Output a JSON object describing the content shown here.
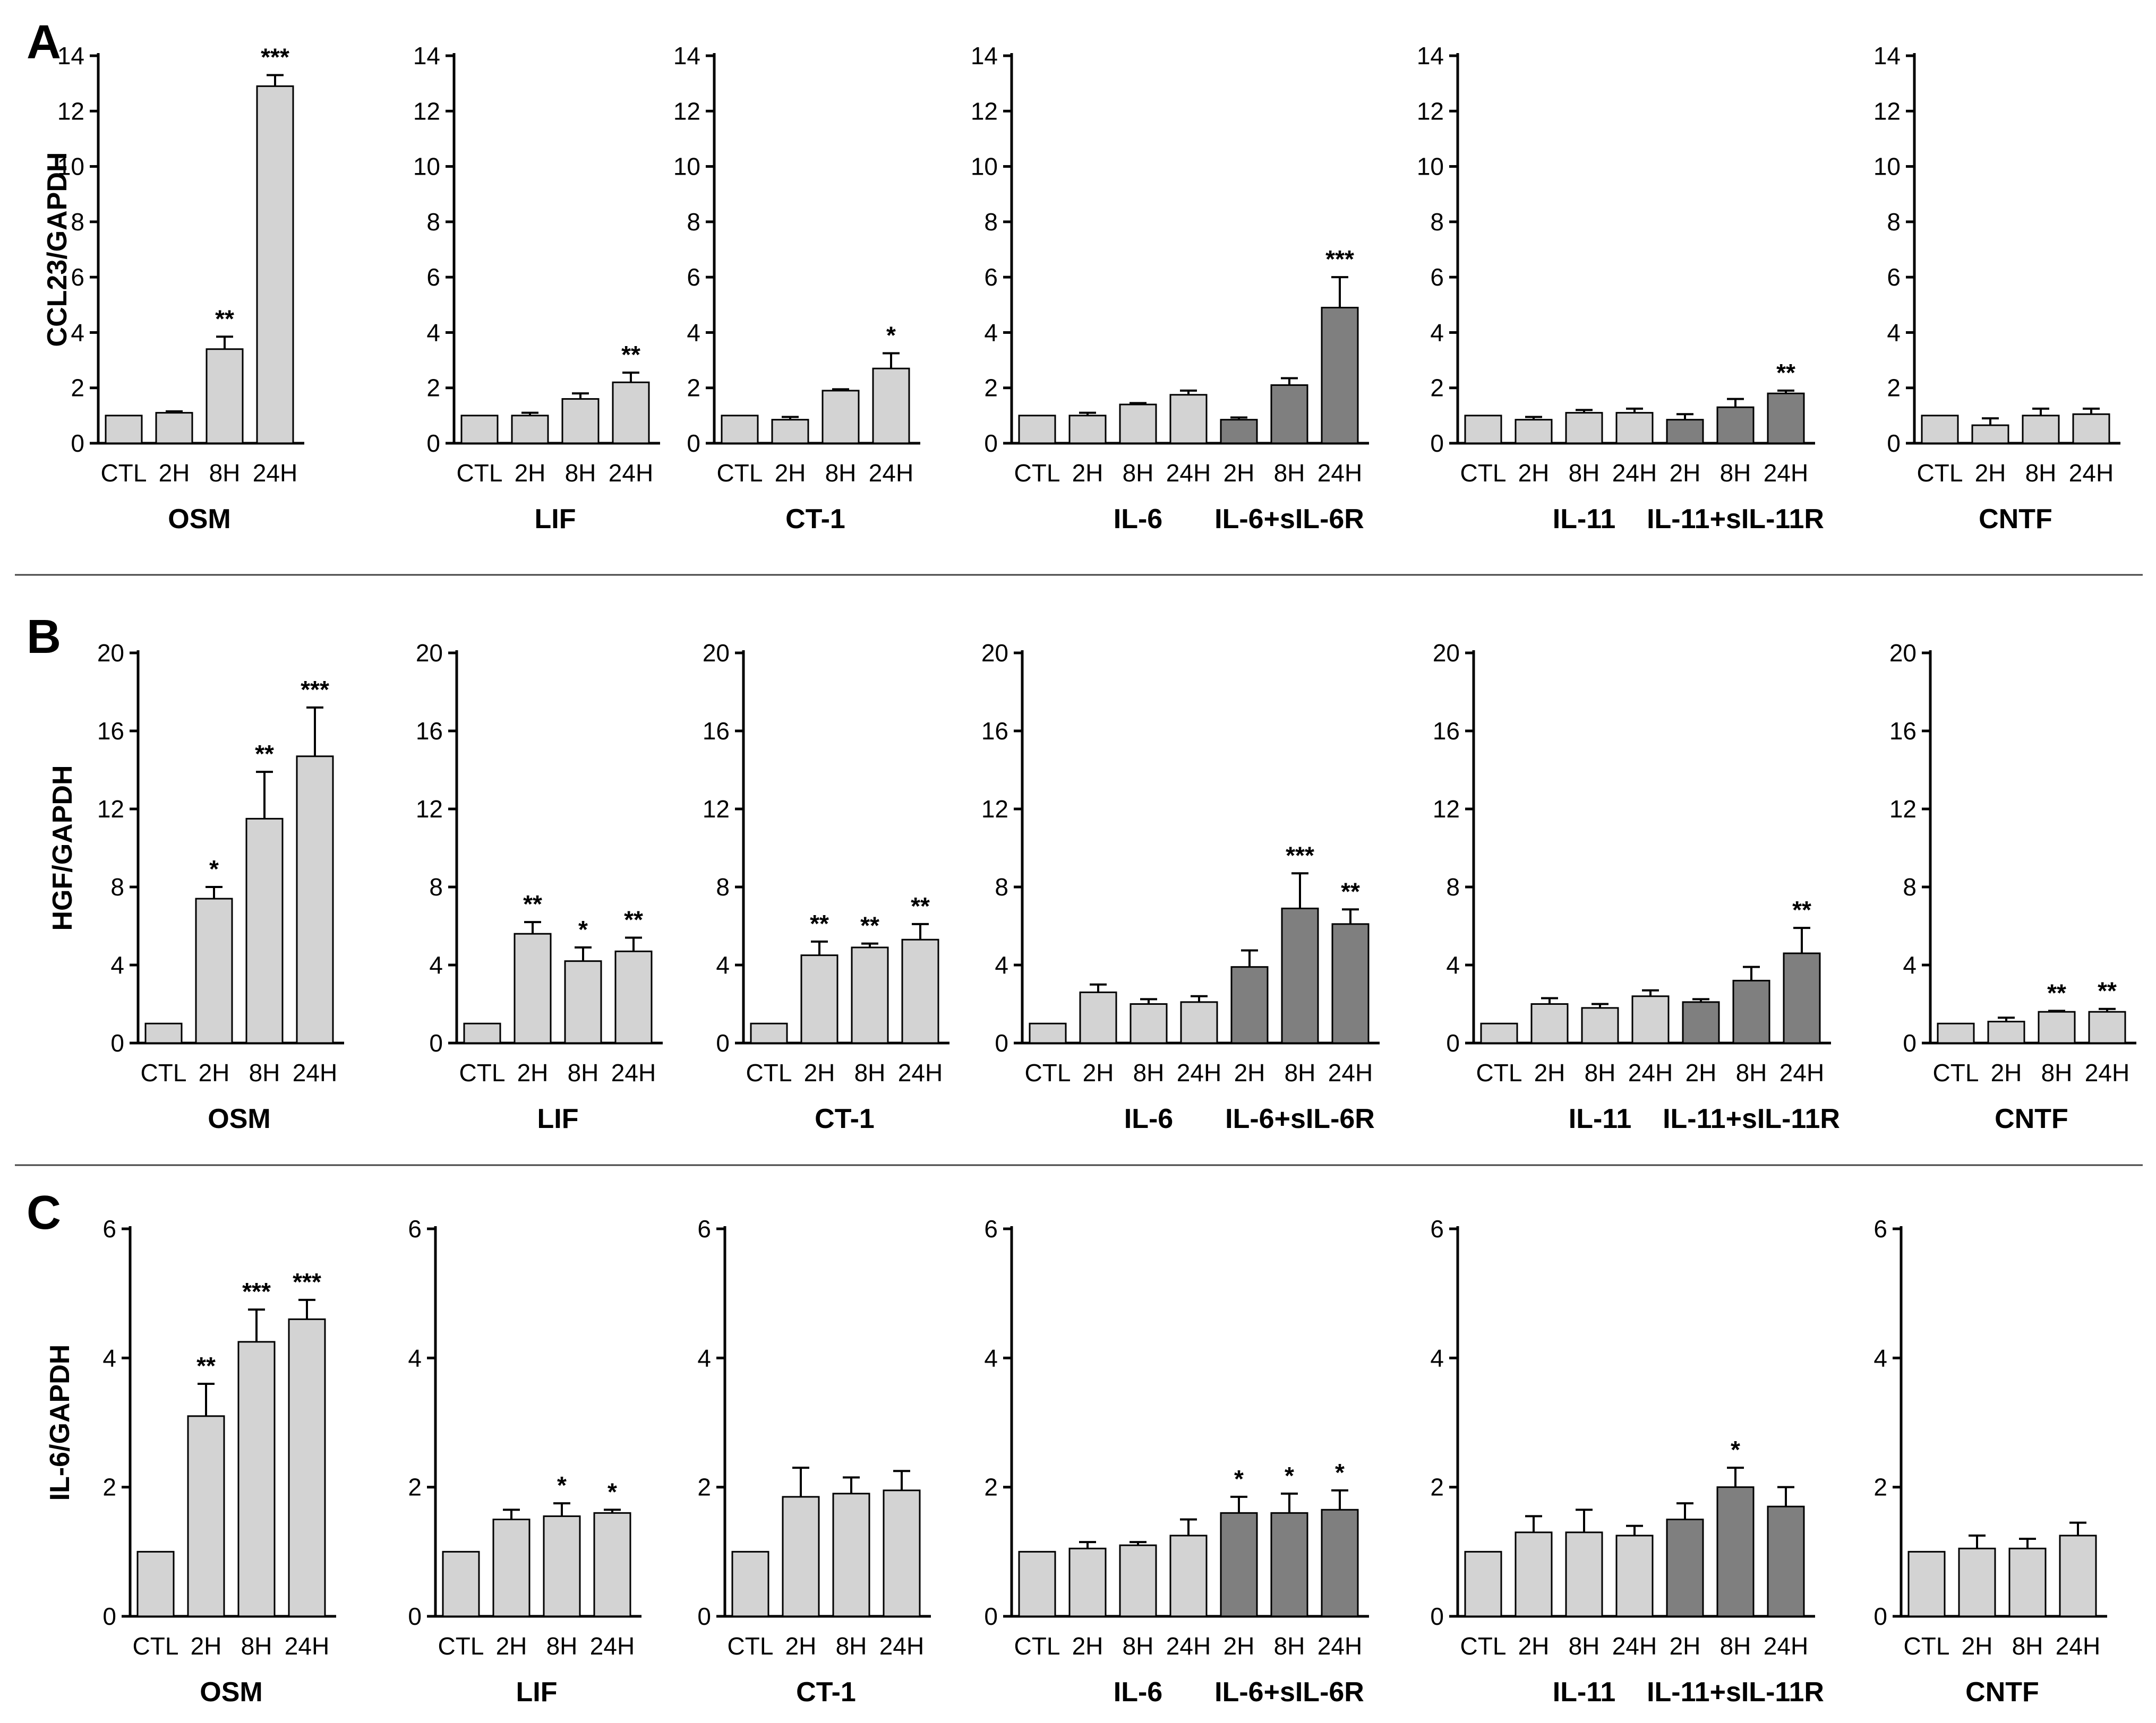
{
  "colors": {
    "light_bar": "#d3d3d3",
    "dark_bar": "#7f7f7f",
    "stroke": "#000000",
    "divider": "#444444"
  },
  "rows": [
    {
      "panel": "A",
      "ylabel": "CCL23/GAPDH",
      "ylim": [
        0,
        14
      ],
      "ticks": [
        0,
        2,
        4,
        6,
        8,
        10,
        12,
        14
      ],
      "charts": [
        {
          "type": "bar",
          "categories": [
            "CTL",
            "2H",
            "8H",
            "24H"
          ],
          "groups": [
            {
              "label": "OSM",
              "span": [
                0,
                3
              ]
            }
          ],
          "values": [
            1.0,
            1.1,
            3.4,
            12.9
          ],
          "errors": [
            0,
            0.05,
            0.45,
            0.4
          ],
          "shade": [
            "light",
            "light",
            "light",
            "light"
          ],
          "sig": [
            "",
            "",
            "**",
            "***"
          ]
        },
        {
          "type": "bar",
          "categories": [
            "CTL",
            "2H",
            "8H",
            "24H"
          ],
          "groups": [
            {
              "label": "LIF",
              "span": [
                0,
                3
              ]
            }
          ],
          "values": [
            1.0,
            1.0,
            1.6,
            2.2
          ],
          "errors": [
            0,
            0.1,
            0.2,
            0.35
          ],
          "shade": [
            "light",
            "light",
            "light",
            "light"
          ],
          "sig": [
            "",
            "",
            "",
            "**"
          ]
        },
        {
          "type": "bar",
          "categories": [
            "CTL",
            "2H",
            "8H",
            "24H"
          ],
          "groups": [
            {
              "label": "CT-1",
              "span": [
                0,
                3
              ]
            }
          ],
          "values": [
            1.0,
            0.85,
            1.9,
            2.7
          ],
          "errors": [
            0,
            0.1,
            0.05,
            0.55
          ],
          "shade": [
            "light",
            "light",
            "light",
            "light"
          ],
          "sig": [
            "",
            "",
            "",
            "*"
          ]
        },
        {
          "type": "bar",
          "categories": [
            "CTL",
            "2H",
            "8H",
            "24H",
            "2H",
            "8H",
            "24H"
          ],
          "groups": [
            {
              "label": "IL-6",
              "span": [
                1,
                3
              ]
            },
            {
              "label": "IL-6+sIL-6R",
              "span": [
                4,
                6
              ]
            }
          ],
          "values": [
            1.0,
            1.0,
            1.4,
            1.75,
            0.85,
            2.1,
            4.9
          ],
          "errors": [
            0,
            0.1,
            0.05,
            0.15,
            0.08,
            0.25,
            1.1
          ],
          "shade": [
            "light",
            "light",
            "light",
            "light",
            "dark",
            "dark",
            "dark"
          ],
          "sig": [
            "",
            "",
            "",
            "",
            "",
            "",
            "***"
          ]
        },
        {
          "type": "bar",
          "categories": [
            "CTL",
            "2H",
            "8H",
            "24H",
            "2H",
            "8H",
            "24H"
          ],
          "groups": [
            {
              "label": "IL-11",
              "span": [
                1,
                3
              ]
            },
            {
              "label": "IL-11+sIL-11R",
              "span": [
                4,
                6
              ]
            }
          ],
          "values": [
            1.0,
            0.85,
            1.1,
            1.1,
            0.85,
            1.3,
            1.8
          ],
          "errors": [
            0,
            0.1,
            0.1,
            0.15,
            0.2,
            0.3,
            0.1
          ],
          "shade": [
            "light",
            "light",
            "light",
            "light",
            "dark",
            "dark",
            "dark"
          ],
          "sig": [
            "",
            "",
            "",
            "",
            "",
            "",
            "**"
          ]
        },
        {
          "type": "bar",
          "categories": [
            "CTL",
            "2H",
            "8H",
            "24H"
          ],
          "groups": [
            {
              "label": "CNTF",
              "span": [
                0,
                3
              ]
            }
          ],
          "values": [
            1.0,
            0.65,
            1.0,
            1.05
          ],
          "errors": [
            0,
            0.25,
            0.25,
            0.2
          ],
          "shade": [
            "light",
            "light",
            "light",
            "light"
          ],
          "sig": [
            "",
            "",
            "",
            ""
          ]
        }
      ]
    },
    {
      "panel": "B",
      "ylabel": "HGF/GAPDH",
      "ylim": [
        0,
        20
      ],
      "ticks": [
        0,
        4,
        8,
        12,
        16,
        20
      ],
      "charts": [
        {
          "type": "bar",
          "categories": [
            "CTL",
            "2H",
            "8H",
            "24H"
          ],
          "groups": [
            {
              "label": "OSM",
              "span": [
                0,
                3
              ]
            }
          ],
          "values": [
            1.0,
            7.4,
            11.5,
            14.7
          ],
          "errors": [
            0,
            0.6,
            2.4,
            2.5
          ],
          "shade": [
            "light",
            "light",
            "light",
            "light"
          ],
          "sig": [
            "",
            "*",
            "**",
            "***"
          ]
        },
        {
          "type": "bar",
          "categories": [
            "CTL",
            "2H",
            "8H",
            "24H"
          ],
          "groups": [
            {
              "label": "LIF",
              "span": [
                0,
                3
              ]
            }
          ],
          "values": [
            1.0,
            5.6,
            4.2,
            4.7
          ],
          "errors": [
            0,
            0.6,
            0.7,
            0.7
          ],
          "shade": [
            "light",
            "light",
            "light",
            "light"
          ],
          "sig": [
            "",
            "**",
            "*",
            "**"
          ]
        },
        {
          "type": "bar",
          "categories": [
            "CTL",
            "2H",
            "8H",
            "24H"
          ],
          "groups": [
            {
              "label": "CT-1",
              "span": [
                0,
                3
              ]
            }
          ],
          "values": [
            1.0,
            4.5,
            4.9,
            5.3
          ],
          "errors": [
            0,
            0.7,
            0.2,
            0.8
          ],
          "shade": [
            "light",
            "light",
            "light",
            "light"
          ],
          "sig": [
            "",
            "**",
            "**",
            "**"
          ]
        },
        {
          "type": "bar",
          "categories": [
            "CTL",
            "2H",
            "8H",
            "24H",
            "2H",
            "8H",
            "24H"
          ],
          "groups": [
            {
              "label": "IL-6",
              "span": [
                1,
                3
              ]
            },
            {
              "label": "IL-6+sIL-6R",
              "span": [
                4,
                6
              ]
            }
          ],
          "values": [
            1.0,
            2.6,
            2.0,
            2.1,
            3.9,
            6.9,
            6.1
          ],
          "errors": [
            0,
            0.4,
            0.25,
            0.3,
            0.85,
            1.8,
            0.75
          ],
          "shade": [
            "light",
            "light",
            "light",
            "light",
            "dark",
            "dark",
            "dark"
          ],
          "sig": [
            "",
            "",
            "",
            "",
            "",
            "***",
            "**"
          ]
        },
        {
          "type": "bar",
          "categories": [
            "CTL",
            "2H",
            "8H",
            "24H",
            "2H",
            "8H",
            "24H"
          ],
          "groups": [
            {
              "label": "IL-11",
              "span": [
                1,
                3
              ]
            },
            {
              "label": "IL-11+sIL-11R",
              "span": [
                4,
                6
              ]
            }
          ],
          "values": [
            1.0,
            2.0,
            1.8,
            2.4,
            2.1,
            3.2,
            4.6
          ],
          "errors": [
            0,
            0.3,
            0.2,
            0.3,
            0.15,
            0.7,
            1.3
          ],
          "shade": [
            "light",
            "light",
            "light",
            "light",
            "dark",
            "dark",
            "dark"
          ],
          "sig": [
            "",
            "",
            "",
            "",
            "",
            "",
            "**"
          ]
        },
        {
          "type": "bar",
          "categories": [
            "CTL",
            "2H",
            "8H",
            "24H"
          ],
          "groups": [
            {
              "label": "CNTF",
              "span": [
                0,
                3
              ]
            }
          ],
          "values": [
            1.0,
            1.1,
            1.6,
            1.6
          ],
          "errors": [
            0,
            0.2,
            0.05,
            0.15
          ],
          "shade": [
            "light",
            "light",
            "light",
            "light"
          ],
          "sig": [
            "",
            "",
            "**",
            "**"
          ]
        }
      ]
    },
    {
      "panel": "C",
      "ylabel": "IL-6/GAPDH",
      "ylim": [
        0,
        6
      ],
      "ticks": [
        0,
        2,
        4,
        6
      ],
      "charts": [
        {
          "type": "bar",
          "categories": [
            "CTL",
            "2H",
            "8H",
            "24H"
          ],
          "groups": [
            {
              "label": "OSM",
              "span": [
                0,
                3
              ]
            }
          ],
          "values": [
            1.0,
            3.1,
            4.25,
            4.6
          ],
          "errors": [
            0,
            0.5,
            0.5,
            0.3
          ],
          "shade": [
            "light",
            "light",
            "light",
            "light"
          ],
          "sig": [
            "",
            "**",
            "***",
            "***"
          ]
        },
        {
          "type": "bar",
          "categories": [
            "CTL",
            "2H",
            "8H",
            "24H"
          ],
          "groups": [
            {
              "label": "LIF",
              "span": [
                0,
                3
              ]
            }
          ],
          "values": [
            1.0,
            1.5,
            1.55,
            1.6
          ],
          "errors": [
            0,
            0.15,
            0.2,
            0.05
          ],
          "shade": [
            "light",
            "light",
            "light",
            "light"
          ],
          "sig": [
            "",
            "",
            "*",
            "*"
          ]
        },
        {
          "type": "bar",
          "categories": [
            "CTL",
            "2H",
            "8H",
            "24H"
          ],
          "groups": [
            {
              "label": "CT-1",
              "span": [
                0,
                3
              ]
            }
          ],
          "values": [
            1.0,
            1.85,
            1.9,
            1.95
          ],
          "errors": [
            0,
            0.45,
            0.25,
            0.3
          ],
          "shade": [
            "light",
            "light",
            "light",
            "light"
          ],
          "sig": [
            "",
            "",
            "",
            ""
          ]
        },
        {
          "type": "bar",
          "categories": [
            "CTL",
            "2H",
            "8H",
            "24H",
            "2H",
            "8H",
            "24H"
          ],
          "groups": [
            {
              "label": "IL-6",
              "span": [
                1,
                3
              ]
            },
            {
              "label": "IL-6+sIL-6R",
              "span": [
                4,
                6
              ]
            }
          ],
          "values": [
            1.0,
            1.05,
            1.1,
            1.25,
            1.6,
            1.6,
            1.65
          ],
          "errors": [
            0,
            0.1,
            0.05,
            0.25,
            0.25,
            0.3,
            0.3
          ],
          "shade": [
            "light",
            "light",
            "light",
            "light",
            "dark",
            "dark",
            "dark"
          ],
          "sig": [
            "",
            "",
            "",
            "",
            "*",
            "*",
            "*"
          ]
        },
        {
          "type": "bar",
          "categories": [
            "CTL",
            "2H",
            "8H",
            "24H",
            "2H",
            "8H",
            "24H"
          ],
          "groups": [
            {
              "label": "IL-11",
              "span": [
                1,
                3
              ]
            },
            {
              "label": "IL-11+sIL-11R",
              "span": [
                4,
                6
              ]
            }
          ],
          "values": [
            1.0,
            1.3,
            1.3,
            1.25,
            1.5,
            2.0,
            1.7
          ],
          "errors": [
            0,
            0.25,
            0.35,
            0.15,
            0.25,
            0.3,
            0.3
          ],
          "shade": [
            "light",
            "light",
            "light",
            "light",
            "dark",
            "dark",
            "dark"
          ],
          "sig": [
            "",
            "",
            "",
            "",
            "",
            "*",
            ""
          ]
        },
        {
          "type": "bar",
          "categories": [
            "CTL",
            "2H",
            "8H",
            "24H"
          ],
          "groups": [
            {
              "label": "CNTF",
              "span": [
                0,
                3
              ]
            }
          ],
          "values": [
            1.0,
            1.05,
            1.05,
            1.25
          ],
          "errors": [
            0,
            0.2,
            0.15,
            0.2
          ],
          "shade": [
            "light",
            "light",
            "light",
            "light"
          ],
          "sig": [
            "",
            "",
            "",
            ""
          ]
        }
      ]
    }
  ]
}
